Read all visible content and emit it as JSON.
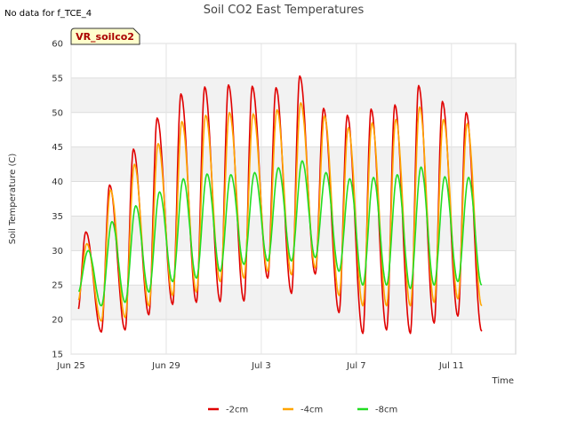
{
  "header": {
    "no_data_note": "No data for f_TCE_4",
    "site_badge": "VR_soilco2"
  },
  "chart_data": {
    "type": "line",
    "title": "Soil CO2 East Temperatures",
    "xlabel": "Time",
    "ylabel": "Soil Temperature (C)",
    "ylim": [
      15,
      60
    ],
    "yticks": [
      15,
      20,
      25,
      30,
      35,
      40,
      45,
      50,
      55,
      60
    ],
    "xlim_days": [
      0,
      18.7
    ],
    "x_ticks": [
      {
        "day": 0,
        "label": "Jun 25"
      },
      {
        "day": 4,
        "label": "Jun 29"
      },
      {
        "day": 8,
        "label": "Jul 3"
      },
      {
        "day": 12,
        "label": "Jul 7"
      },
      {
        "day": 16,
        "label": "Jul 11"
      }
    ],
    "grid": true,
    "legend_position": "bottom-center",
    "series": [
      {
        "name": "-2cm",
        "color": "#e00000",
        "start_day": 0.3,
        "end_day": 17.5,
        "peak_hour": 0.62,
        "troughs": [
          21.1,
          18.2,
          18.5,
          20.7,
          22.2,
          22.5,
          22.6,
          22.7,
          26.0,
          23.8,
          26.6,
          21.0,
          18.0,
          18.5,
          18.0,
          19.5,
          20.5,
          18.3,
          21.6
        ],
        "peaks": [
          32.7,
          39.5,
          44.7,
          49.2,
          52.7,
          53.7,
          54.0,
          53.8,
          53.6,
          55.3,
          50.6,
          49.6,
          50.5,
          51.1,
          53.9,
          51.6,
          50.0
        ]
      },
      {
        "name": "-4cm",
        "color": "#ffa500",
        "start_day": 0.3,
        "end_day": 17.5,
        "peak_hour": 0.66,
        "troughs": [
          22.5,
          19.8,
          20.3,
          22.0,
          23.5,
          24.0,
          25.5,
          26.0,
          27.0,
          26.5,
          27.5,
          23.5,
          22.0,
          22.0,
          22.0,
          22.5,
          23.0,
          22.0,
          26.3
        ],
        "peaks": [
          31.0,
          38.8,
          42.5,
          45.5,
          48.7,
          49.6,
          50.0,
          49.8,
          50.4,
          51.4,
          49.5,
          47.8,
          48.5,
          49.0,
          50.8,
          49.0,
          48.4
        ]
      },
      {
        "name": "-8cm",
        "color": "#22dd22",
        "start_day": 0.3,
        "end_day": 17.5,
        "peak_hour": 0.72,
        "troughs": [
          23.8,
          22.0,
          22.5,
          24.0,
          25.5,
          26.0,
          27.0,
          28.0,
          28.5,
          28.5,
          29.0,
          27.0,
          25.0,
          25.0,
          24.5,
          25.0,
          25.5,
          25.0,
          28.5
        ],
        "peaks": [
          30.0,
          34.2,
          36.5,
          38.5,
          40.4,
          41.1,
          41.0,
          41.3,
          42.0,
          43.0,
          41.3,
          40.4,
          40.6,
          41.0,
          42.1,
          40.7,
          40.6
        ]
      }
    ]
  }
}
